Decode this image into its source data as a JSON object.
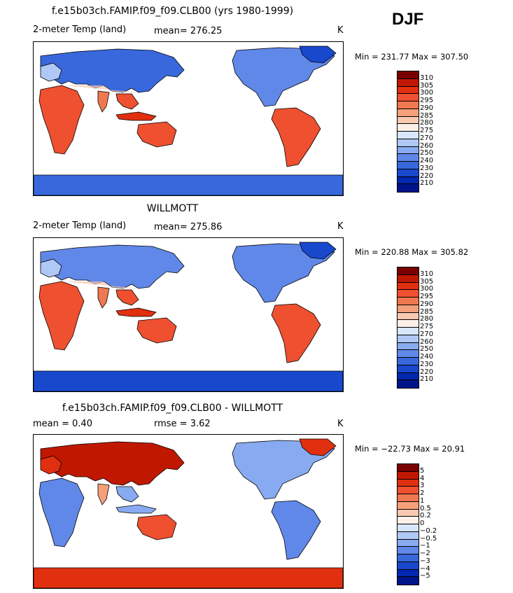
{
  "season": "DJF",
  "colors": {
    "temp": [
      "#7a0000",
      "#c01800",
      "#e03010",
      "#ee5030",
      "#f07850",
      "#f5a07a",
      "#f8c8b0",
      "#fdf0e8",
      "#d8e6fb",
      "#b0c8f5",
      "#88aaf0",
      "#6088e8",
      "#3868dc",
      "#1848cc",
      "#0028b0",
      "#00148a"
    ],
    "diff": [
      "#7a0000",
      "#c01800",
      "#e03010",
      "#ee5030",
      "#f07850",
      "#f5a07a",
      "#f8c8b0",
      "#fdf0e8",
      "#d8e6fb",
      "#b0c8f5",
      "#88aaf0",
      "#6088e8",
      "#3868dc",
      "#1848cc",
      "#0028b0",
      "#00148a"
    ]
  },
  "panels": [
    {
      "title": "f.e15b03ch.FAMIP.f09_f09.CLB00 (yrs 1980-1999)",
      "left_label": "2-meter Temp (land)",
      "center_label": "mean= 276.25",
      "unit": "K",
      "minmax": "Min = 231.77 Max = 307.50",
      "kind": "temp",
      "ticks": [
        "310",
        "305",
        "300",
        "295",
        "290",
        "285",
        "280",
        "275",
        "270",
        "260",
        "250",
        "240",
        "230",
        "220",
        "210"
      ]
    },
    {
      "title": "WILLMOTT",
      "left_label": "2-meter Temp (land)",
      "center_label": "mean= 275.86",
      "unit": "K",
      "minmax": "Min = 220.88 Max = 305.82",
      "kind": "temp",
      "ticks": [
        "310",
        "305",
        "300",
        "295",
        "290",
        "285",
        "280",
        "275",
        "270",
        "260",
        "250",
        "240",
        "230",
        "220",
        "210"
      ]
    },
    {
      "title": "f.e15b03ch.FAMIP.f09_f09.CLB00 - WILLMOTT",
      "left_label": "mean =    0.40",
      "center_label": "rmse =    3.62",
      "unit": "K",
      "minmax": "Min = −22.73 Max =  20.91",
      "kind": "diff",
      "ticks": [
        "5",
        "4",
        "3",
        "2",
        "1",
        "0.5",
        "0.2",
        "0",
        "−0.2",
        "−0.5",
        "−1",
        "−2",
        "−3",
        "−4",
        "−5"
      ]
    }
  ]
}
